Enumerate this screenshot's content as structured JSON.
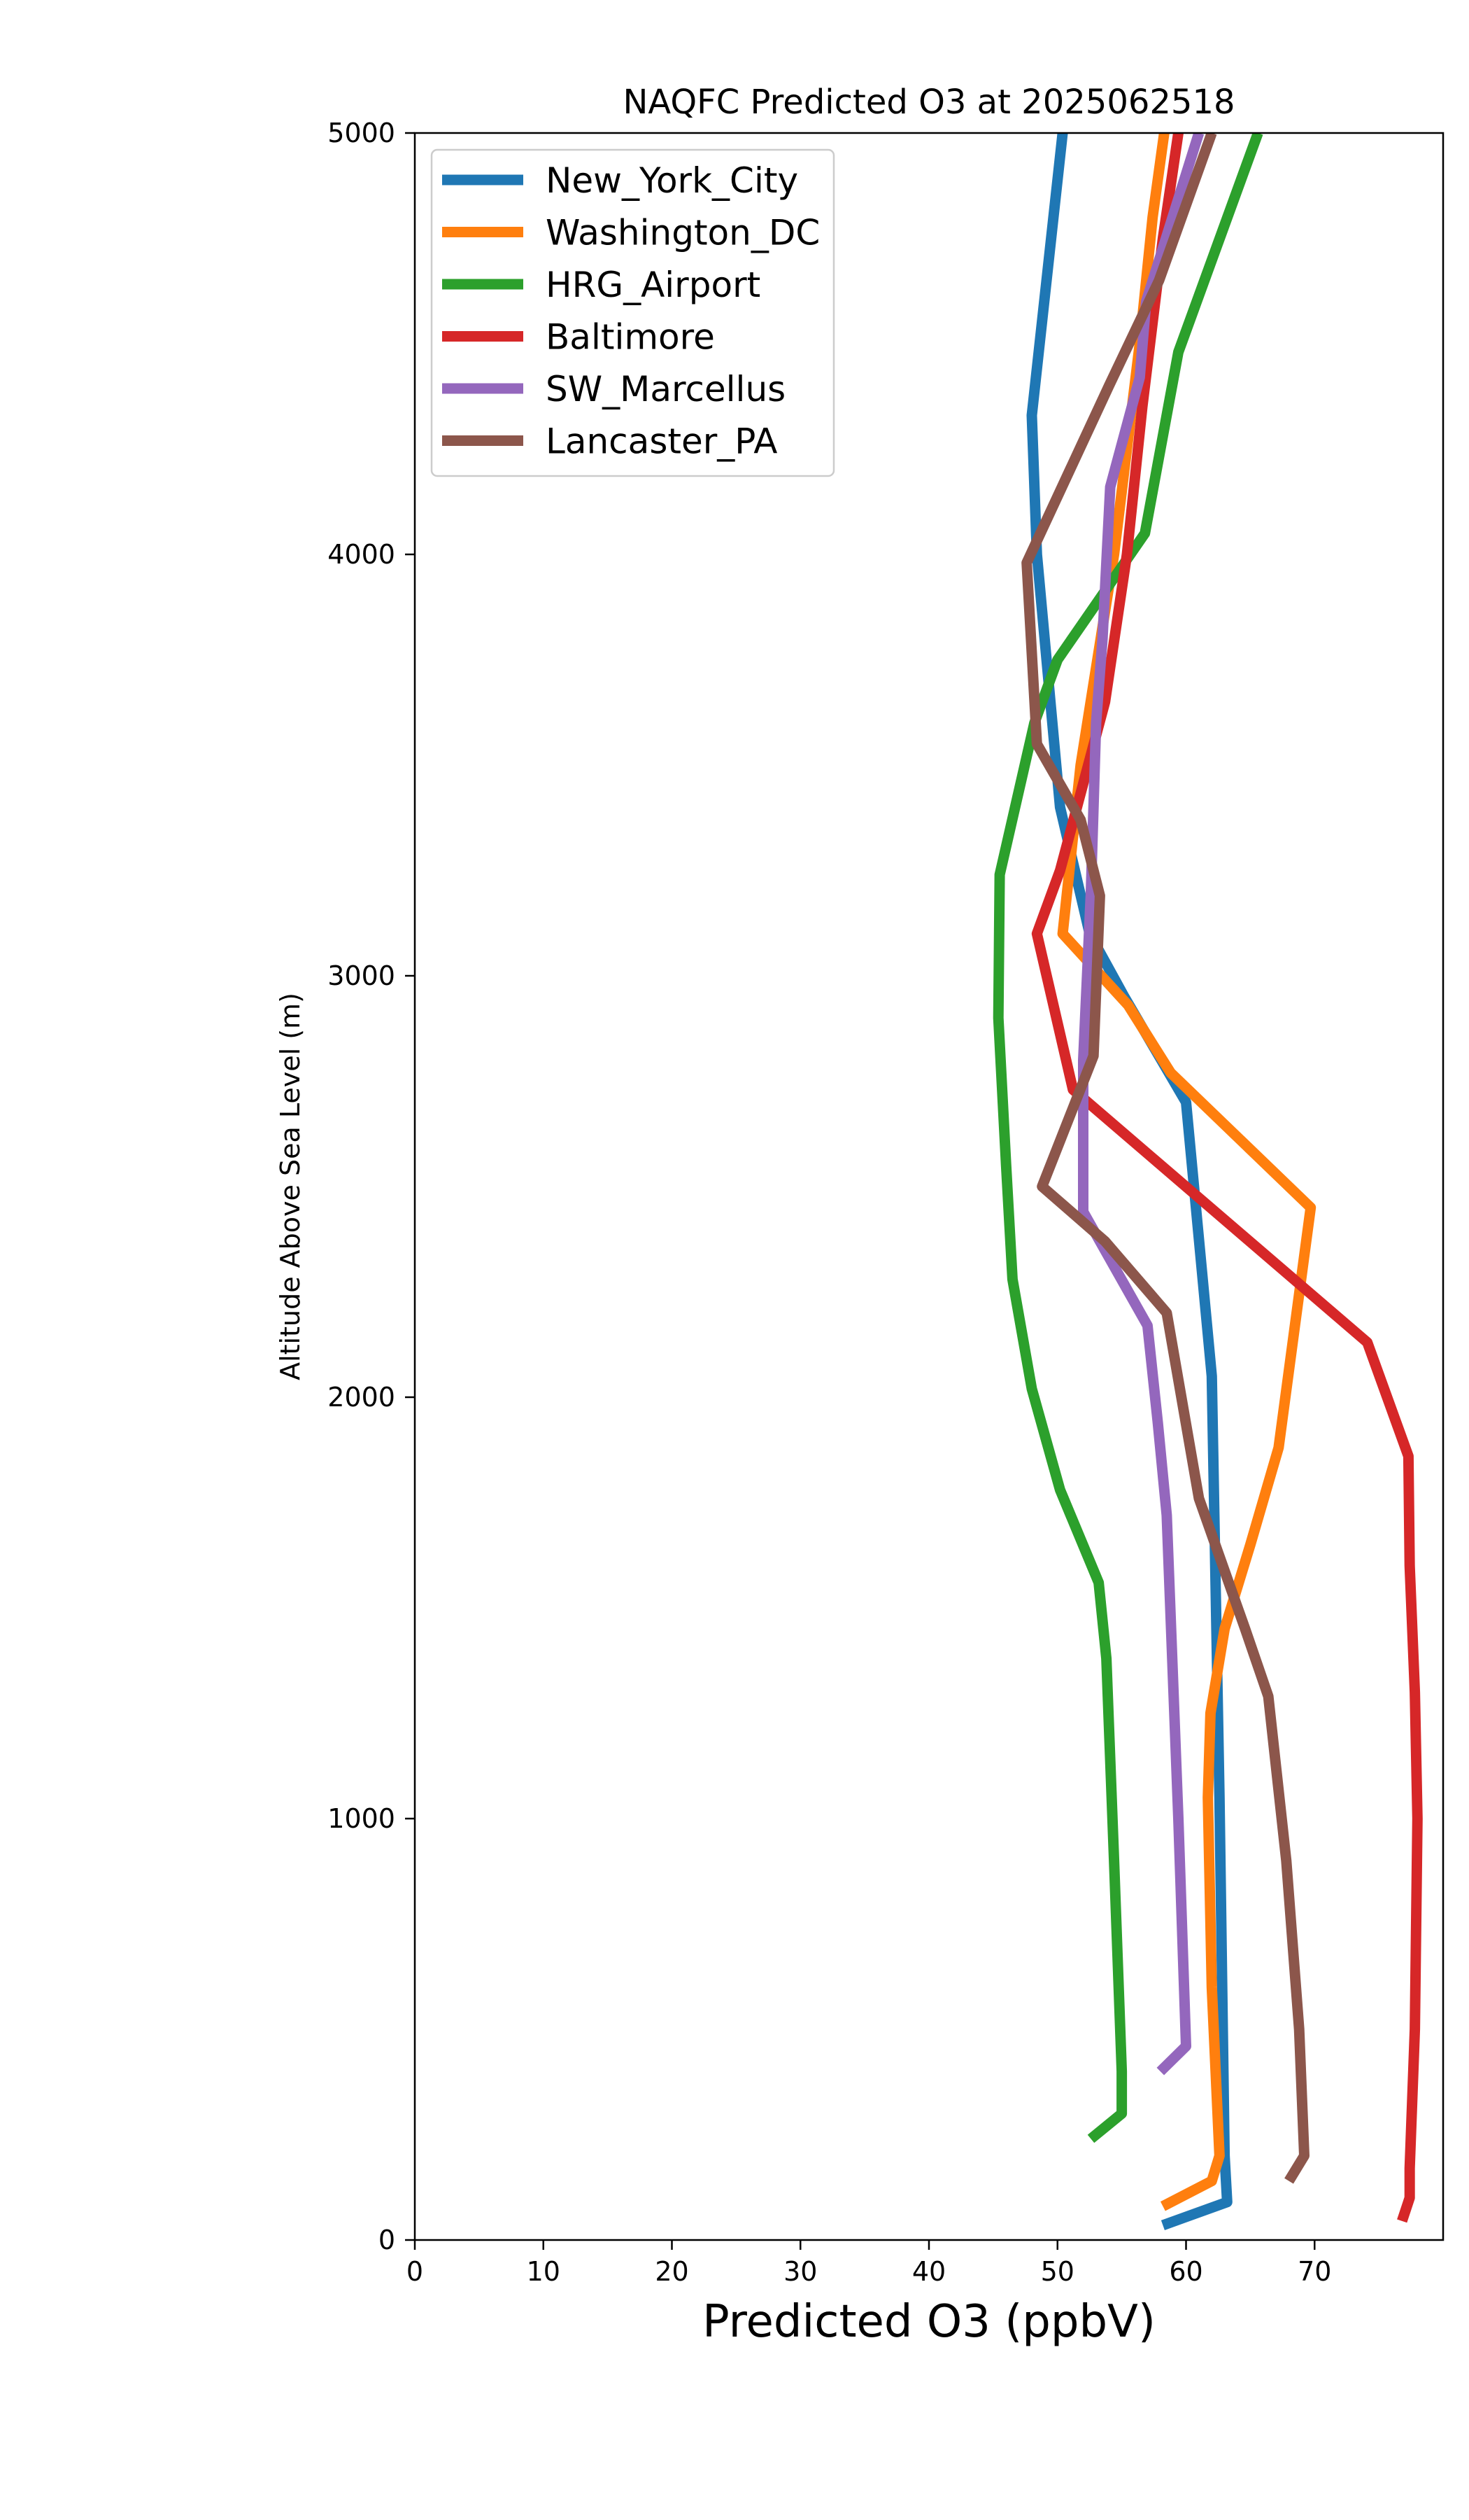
{
  "chart_data": {
    "type": "line",
    "title": "NAQFC Predicted O3 at 2025062518",
    "xlabel": "Predicted O3 (ppbV)",
    "ylabel": "Altitude Above Sea Level (m)",
    "xlim": [
      0,
      80
    ],
    "ylim": [
      0,
      5000
    ],
    "xticks": [
      0,
      10,
      20,
      30,
      40,
      50,
      60,
      70
    ],
    "yticks": [
      0,
      1000,
      2000,
      3000,
      4000,
      5000
    ],
    "xtick_labels": [
      "0",
      "10",
      "20",
      "30",
      "40",
      "50",
      "60",
      "70"
    ],
    "ytick_labels": [
      "0",
      "1000",
      "2000",
      "3000",
      "4000",
      "5000"
    ],
    "grid": false,
    "legend_position": "upper-left",
    "series": [
      {
        "name": "New_York_City",
        "color": "#1f77b4",
        "x": [
          58.2,
          63.2,
          63.0,
          62.6,
          62.0,
          60.0,
          55.2,
          52.5,
          50.2,
          48.4,
          48.0,
          50.4
        ],
        "y": [
          35,
          90,
          200,
          1050,
          2050,
          2700,
          2950,
          3100,
          3400,
          4000,
          4330,
          5000
        ]
      },
      {
        "name": "Washington_DC",
        "color": "#ff7f0e",
        "x": [
          58.2,
          62.0,
          62.6,
          62.0,
          61.7,
          61.9,
          63.0,
          65.0,
          67.2,
          69.7,
          58.8,
          55.5,
          50.4,
          51.8,
          54.4,
          56.4,
          57.4,
          58.3
        ],
        "y": [
          80,
          140,
          200,
          600,
          1050,
          1250,
          1450,
          1650,
          1880,
          2450,
          2770,
          2930,
          3100,
          3500,
          4000,
          4500,
          4800,
          5000
        ]
      },
      {
        "name": "HRG_Airport",
        "color": "#2ca02c",
        "x": [
          52.6,
          55.0,
          55.0,
          54.4,
          53.8,
          53.2,
          50.2,
          48.0,
          46.5,
          46.0,
          45.4,
          45.5,
          48.2,
          50.0,
          56.8,
          59.4,
          65.6
        ],
        "y": [
          240,
          300,
          400,
          900,
          1380,
          1560,
          1780,
          2020,
          2280,
          2550,
          2900,
          3240,
          3600,
          3750,
          4050,
          4480,
          5000
        ]
      },
      {
        "name": "Baltimore",
        "color": "#d62728",
        "x": [
          76.8,
          77.4,
          77.4,
          77.8,
          78.0,
          77.8,
          77.4,
          77.3,
          74.1,
          51.2,
          48.4,
          50.2,
          53.7,
          55.4,
          56.6,
          58.2,
          59.4
        ],
        "y": [
          45,
          100,
          170,
          500,
          1000,
          1300,
          1600,
          1860,
          2130,
          2730,
          3100,
          3250,
          3650,
          4000,
          4350,
          4750,
          5000
        ]
      },
      {
        "name": "SW_Marcellus",
        "color": "#9467bd",
        "x": [
          58.0,
          60.0,
          59.4,
          58.5,
          57.8,
          57.0,
          52.0,
          52.0,
          52.6,
          53.0,
          53.5,
          54.1,
          56.4,
          56.9,
          61.0
        ],
        "y": [
          400,
          460,
          1000,
          1720,
          1940,
          2170,
          2440,
          2800,
          3200,
          3600,
          3800,
          4160,
          4420,
          4600,
          5000
        ]
      },
      {
        "name": "Lancaster_PA",
        "color": "#8c564b",
        "x": [
          68.0,
          69.2,
          68.8,
          67.8,
          66.4,
          64.6,
          61.0,
          58.5,
          53.7,
          48.8,
          52.8,
          53.3,
          51.8,
          48.4,
          47.6,
          54.0,
          57.9,
          62.0
        ],
        "y": [
          140,
          200,
          500,
          900,
          1290,
          1450,
          1760,
          2200,
          2370,
          2500,
          2810,
          3190,
          3370,
          3550,
          3980,
          4400,
          4650,
          5000
        ]
      }
    ]
  }
}
